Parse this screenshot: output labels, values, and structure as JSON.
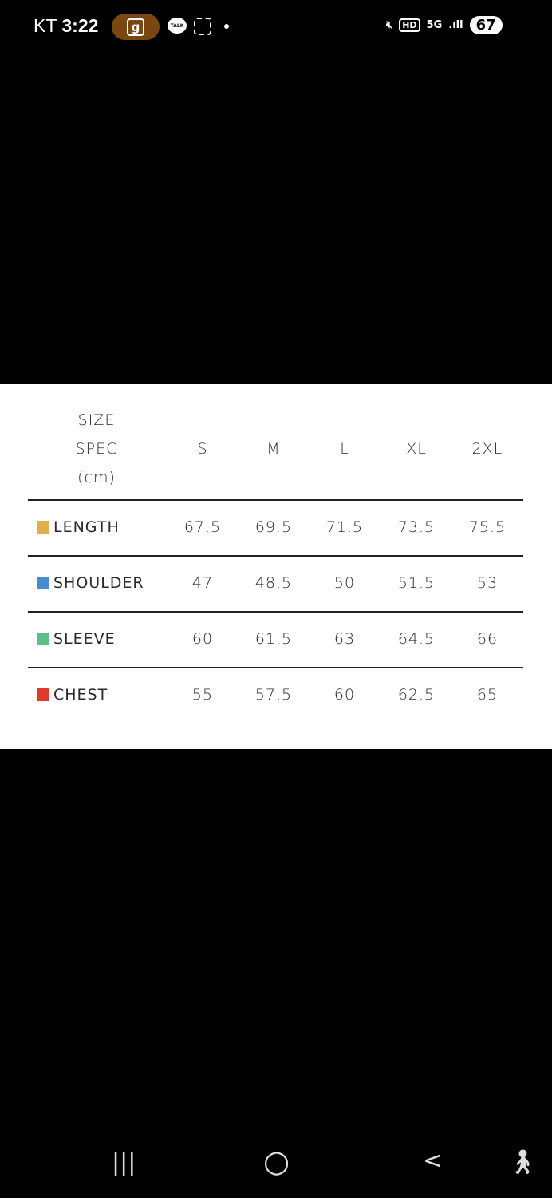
{
  "status_bar": {
    "carrier": "KT",
    "time": "3:22",
    "g_app": "g",
    "talk": "TALK",
    "hd": "HD",
    "network": "5G",
    "battery": "67"
  },
  "table": {
    "header_spec": [
      "SIZE",
      "SPEC",
      "(cm)"
    ],
    "sizes": [
      "S",
      "M",
      "L",
      "XL",
      "2XL"
    ],
    "rows": [
      {
        "label": "LENGTH",
        "color": "#e0b04a",
        "values": [
          "67.5",
          "69.5",
          "71.5",
          "73.5",
          "75.5"
        ]
      },
      {
        "label": "SHOULDER",
        "color": "#4a8ad0",
        "values": [
          "47",
          "48.5",
          "50",
          "51.5",
          "53"
        ]
      },
      {
        "label": "SLEEVE",
        "color": "#5cbf8a",
        "values": [
          "60",
          "61.5",
          "63",
          "64.5",
          "66"
        ]
      },
      {
        "label": "CHEST",
        "color": "#e03a2c",
        "values": [
          "55",
          "57.5",
          "60",
          "62.5",
          "65"
        ]
      }
    ]
  },
  "nav": {
    "recents": "|||",
    "home": "○",
    "back": "<",
    "accessibility": "accessibility-icon"
  }
}
